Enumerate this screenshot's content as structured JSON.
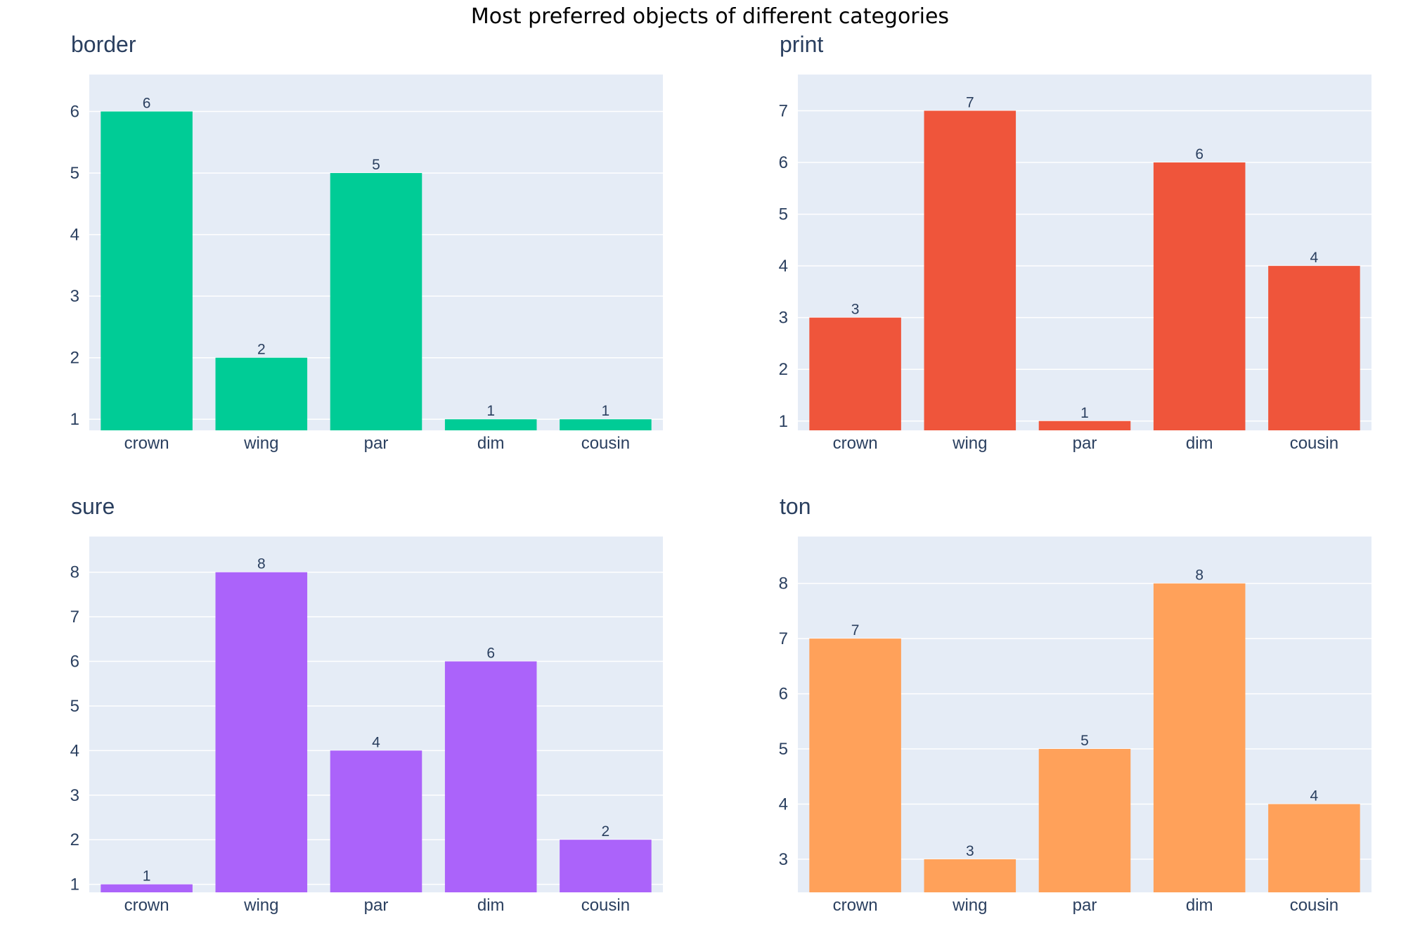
{
  "figure_title": "Most preferred objects of different categories",
  "chart_data": [
    {
      "type": "bar",
      "title": "border",
      "categories": [
        "crown",
        "wing",
        "par",
        "dim",
        "cousin"
      ],
      "values": [
        6,
        2,
        5,
        1,
        1
      ],
      "ylim": [
        0.82,
        6.6
      ],
      "yticks": [
        1,
        2,
        3,
        4,
        5,
        6
      ],
      "color": "#00cc96",
      "xlabel": "",
      "ylabel": "",
      "grid": true
    },
    {
      "type": "bar",
      "title": "print",
      "categories": [
        "crown",
        "wing",
        "par",
        "dim",
        "cousin"
      ],
      "values": [
        3,
        7,
        1,
        6,
        4
      ],
      "ylim": [
        0.82,
        7.7
      ],
      "yticks": [
        1,
        2,
        3,
        4,
        5,
        6,
        7
      ],
      "color": "#ef553b",
      "xlabel": "",
      "ylabel": "",
      "grid": true
    },
    {
      "type": "bar",
      "title": "sure",
      "categories": [
        "crown",
        "wing",
        "par",
        "dim",
        "cousin"
      ],
      "values": [
        1,
        8,
        4,
        6,
        2
      ],
      "ylim": [
        0.82,
        8.8
      ],
      "yticks": [
        1,
        2,
        3,
        4,
        5,
        6,
        7,
        8
      ],
      "color": "#ab63fa",
      "xlabel": "",
      "ylabel": "",
      "grid": true
    },
    {
      "type": "bar",
      "title": "ton",
      "categories": [
        "crown",
        "wing",
        "par",
        "dim",
        "cousin"
      ],
      "values": [
        7,
        3,
        5,
        8,
        4
      ],
      "ylim": [
        2.4,
        8.85
      ],
      "yticks": [
        3,
        4,
        5,
        6,
        7,
        8
      ],
      "color": "#ffa15a",
      "xlabel": "",
      "ylabel": "",
      "grid": true
    }
  ]
}
